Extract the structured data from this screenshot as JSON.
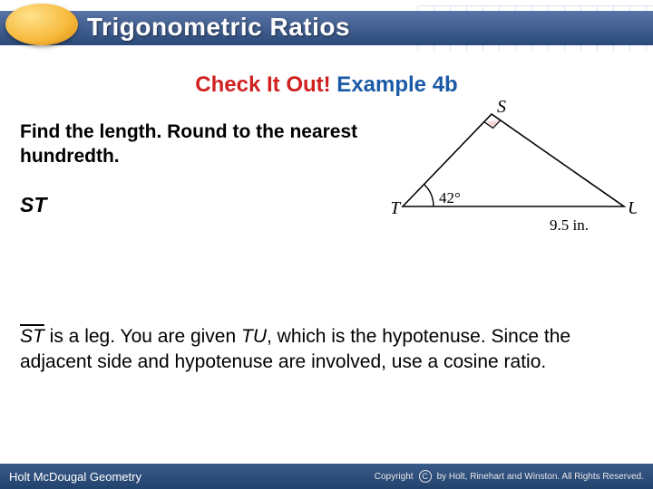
{
  "header": {
    "title": "Trigonometric Ratios"
  },
  "subtitle": {
    "red": "Check It Out!",
    "blue": " Example 4b"
  },
  "prompt": "Find the length. Round to the nearest hundredth.",
  "segment": "ST",
  "diagram": {
    "vertices": {
      "S": "S",
      "T": "T",
      "U": "U"
    },
    "angle_label": "42°",
    "base_label": "9.5 in.",
    "points": {
      "T": [
        12,
        120
      ],
      "U": [
        256,
        120
      ],
      "S": [
        110,
        18
      ]
    },
    "stroke": "#000000",
    "right_angle_marker_size": 12,
    "label_fontsize": 20,
    "angle_fontsize": 17
  },
  "explain": {
    "seg": "ST",
    "part1": " is a leg. You are given ",
    "tu": "TU",
    "part2": ", which is the hypotenuse. Since the adjacent side and hypotenuse are involved, use a cosine ratio."
  },
  "footer": {
    "left": "Holt McDougal Geometry",
    "right": "by Holt, Rinehart and Winston. All Rights Reserved.",
    "copyright_word": "Copyright"
  }
}
